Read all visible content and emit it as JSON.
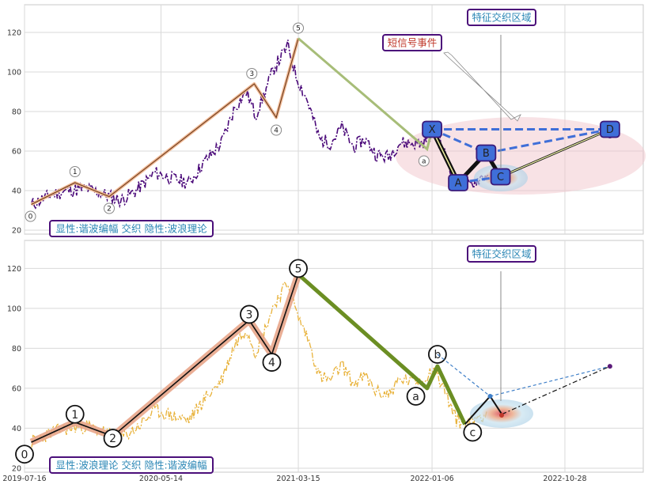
{
  "chart_data": [
    {
      "type": "line",
      "panel": "top",
      "xlim": [
        "2019-07-16",
        "2023-04-20"
      ],
      "ylim": [
        18,
        134
      ],
      "y_ticks": [
        20,
        40,
        60,
        80,
        100,
        120
      ],
      "x_ticks": [],
      "grid": true,
      "price_series": [
        {
          "date": "2019-08-01",
          "value": 33
        },
        {
          "date": "2019-09-15",
          "value": 38
        },
        {
          "date": "2019-10-20",
          "value": 40
        },
        {
          "date": "2019-12-01",
          "value": 41
        },
        {
          "date": "2020-01-10",
          "value": 38
        },
        {
          "date": "2020-02-15",
          "value": 35
        },
        {
          "date": "2020-03-20",
          "value": 40
        },
        {
          "date": "2020-05-01",
          "value": 49
        },
        {
          "date": "2020-06-10",
          "value": 46
        },
        {
          "date": "2020-07-15",
          "value": 44
        },
        {
          "date": "2020-08-20",
          "value": 55
        },
        {
          "date": "2020-09-25",
          "value": 64
        },
        {
          "date": "2020-10-25",
          "value": 82
        },
        {
          "date": "2020-11-20",
          "value": 90
        },
        {
          "date": "2020-12-10",
          "value": 78
        },
        {
          "date": "2020-12-25",
          "value": 86
        },
        {
          "date": "2021-01-20",
          "value": 102
        },
        {
          "date": "2021-02-20",
          "value": 113
        },
        {
          "date": "2021-03-10",
          "value": 98
        },
        {
          "date": "2021-04-05",
          "value": 85
        },
        {
          "date": "2021-05-01",
          "value": 66
        },
        {
          "date": "2021-05-25",
          "value": 64
        },
        {
          "date": "2021-06-20",
          "value": 72
        },
        {
          "date": "2021-07-15",
          "value": 62
        },
        {
          "date": "2021-08-10",
          "value": 66
        },
        {
          "date": "2021-09-05",
          "value": 58
        },
        {
          "date": "2021-10-01",
          "value": 57
        },
        {
          "date": "2021-10-25",
          "value": 64
        },
        {
          "date": "2021-11-20",
          "value": 64
        },
        {
          "date": "2021-12-15",
          "value": 64
        },
        {
          "date": "2022-01-10",
          "value": 70
        },
        {
          "date": "2022-02-01",
          "value": 60
        },
        {
          "date": "2022-03-01",
          "value": 44
        },
        {
          "date": "2022-03-25",
          "value": 42
        },
        {
          "date": "2022-04-20",
          "value": 46
        },
        {
          "date": "2022-05-10",
          "value": 48
        }
      ],
      "wave_points": [
        {
          "label": "0",
          "date": "2019-07-31",
          "value": 33
        },
        {
          "label": "1",
          "date": "2019-11-05",
          "value": 44
        },
        {
          "label": "2",
          "date": "2020-01-20",
          "value": 37
        },
        {
          "label": "3",
          "date": "2020-12-07",
          "value": 94
        },
        {
          "label": "4",
          "date": "2021-01-25",
          "value": 77
        },
        {
          "label": "5",
          "date": "2021-03-15",
          "value": 117
        },
        {
          "label": "a",
          "date": "2021-12-26",
          "value": 61
        }
      ],
      "harmonic_points": [
        {
          "label": "X",
          "date": "2022-01-06",
          "value": 71
        },
        {
          "label": "A",
          "date": "2022-03-05",
          "value": 44
        },
        {
          "label": "B",
          "date": "2022-05-06",
          "value": 59
        },
        {
          "label": "C",
          "date": "2022-06-07",
          "value": 47
        },
        {
          "label": "D",
          "date": "2023-02-05",
          "value": 71
        }
      ],
      "boxes": {
        "bottom_left": "显性:谐波编幅 交织 隐性:波浪理论",
        "top_right": "特征交织区域",
        "callout": "短信号事件"
      }
    },
    {
      "type": "line",
      "panel": "bottom",
      "xlim": [
        "2019-07-16",
        "2023-04-20"
      ],
      "ylim": [
        18,
        134
      ],
      "y_ticks": [
        20,
        40,
        60,
        80,
        100,
        120
      ],
      "x_ticks": [
        "2019-07-16",
        "2020-05-14",
        "2021-03-15",
        "2022-01-06",
        "2022-10-28"
      ],
      "grid": true,
      "wave_points": [
        {
          "label": "0",
          "date": "2019-07-16",
          "value": 27
        },
        {
          "label": "1",
          "date": "2019-11-05",
          "value": 47
        },
        {
          "label": "2",
          "date": "2020-01-28",
          "value": 35
        },
        {
          "label": "3",
          "date": "2020-11-26",
          "value": 97
        },
        {
          "label": "4",
          "date": "2021-01-15",
          "value": 73
        },
        {
          "label": "5",
          "date": "2021-03-15",
          "value": 120
        },
        {
          "label": "a",
          "date": "2021-12-01",
          "value": 56
        },
        {
          "label": "b",
          "date": "2022-01-18",
          "value": 77
        },
        {
          "label": "c",
          "date": "2022-04-06",
          "value": 38
        }
      ],
      "wave_path": [
        {
          "date": "2019-07-31",
          "value": 33
        },
        {
          "date": "2019-11-05",
          "value": 43
        },
        {
          "date": "2020-01-28",
          "value": 36
        },
        {
          "date": "2020-11-26",
          "value": 94
        },
        {
          "date": "2021-01-15",
          "value": 77
        },
        {
          "date": "2021-03-15",
          "value": 117
        },
        {
          "date": "2021-12-26",
          "value": 60
        },
        {
          "date": "2022-01-18",
          "value": 71
        },
        {
          "date": "2022-03-20",
          "value": 42
        }
      ],
      "harmonic_path": [
        {
          "date": "2022-03-20",
          "value": 42
        },
        {
          "date": "2022-05-15",
          "value": 56
        },
        {
          "date": "2022-06-10",
          "value": 47
        },
        {
          "date": "2023-02-05",
          "value": 71
        }
      ],
      "boxes": {
        "bottom_left": "显性:波浪理论 交织 隐性:谐波编幅",
        "top_right": "特征交织区域"
      }
    }
  ]
}
